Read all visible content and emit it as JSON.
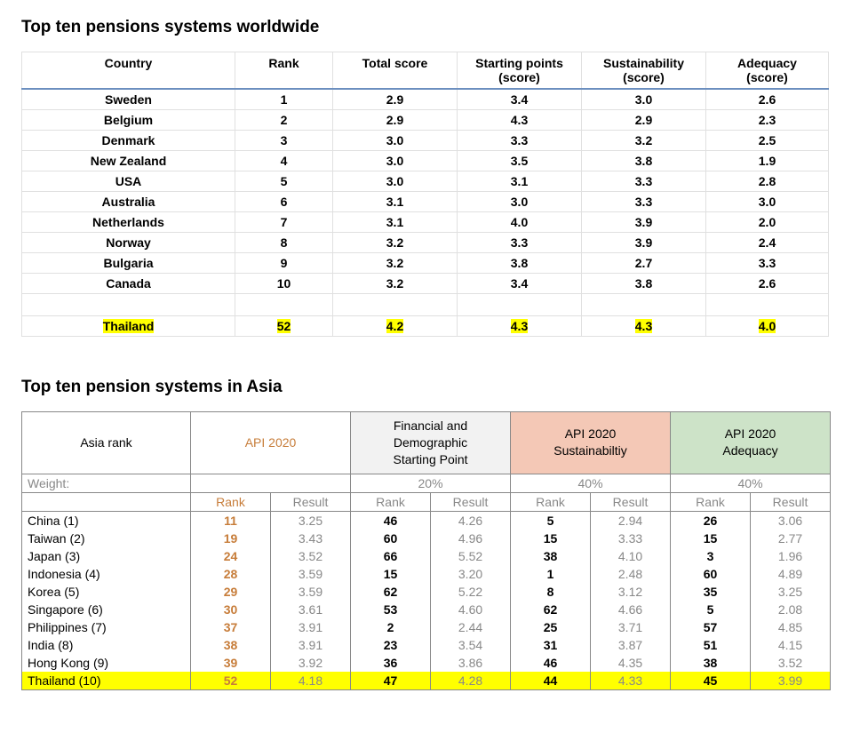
{
  "table1": {
    "title": "Top ten pensions systems worldwide",
    "columns": [
      {
        "l1": "Country",
        "l2": ""
      },
      {
        "l1": "Rank",
        "l2": ""
      },
      {
        "l1": "Total score",
        "l2": ""
      },
      {
        "l1": "Starting points",
        "l2": "(score)"
      },
      {
        "l1": "Sustainability",
        "l2": "(score)"
      },
      {
        "l1": "Adequacy",
        "l2": "(score)"
      }
    ],
    "rows": [
      {
        "country": "Sweden",
        "rank": "1",
        "total": "2.9",
        "sp": "3.4",
        "sus": "3.0",
        "adq": "2.6"
      },
      {
        "country": "Belgium",
        "rank": "2",
        "total": "2.9",
        "sp": "4.3",
        "sus": "2.9",
        "adq": "2.3"
      },
      {
        "country": "Denmark",
        "rank": "3",
        "total": "3.0",
        "sp": "3.3",
        "sus": "3.2",
        "adq": "2.5"
      },
      {
        "country": "New Zealand",
        "rank": "4",
        "total": "3.0",
        "sp": "3.5",
        "sus": "3.8",
        "adq": "1.9"
      },
      {
        "country": "USA",
        "rank": "5",
        "total": "3.0",
        "sp": "3.1",
        "sus": "3.3",
        "adq": "2.8"
      },
      {
        "country": "Australia",
        "rank": "6",
        "total": "3.1",
        "sp": "3.0",
        "sus": "3.3",
        "adq": "3.0"
      },
      {
        "country": "Netherlands",
        "rank": "7",
        "total": "3.1",
        "sp": "4.0",
        "sus": "3.9",
        "adq": "2.0"
      },
      {
        "country": "Norway",
        "rank": "8",
        "total": "3.2",
        "sp": "3.3",
        "sus": "3.9",
        "adq": "2.4"
      },
      {
        "country": "Bulgaria",
        "rank": "9",
        "total": "3.2",
        "sp": "3.8",
        "sus": "2.7",
        "adq": "3.3"
      },
      {
        "country": "Canada",
        "rank": "10",
        "total": "3.2",
        "sp": "3.4",
        "sus": "3.8",
        "adq": "2.6"
      }
    ],
    "highlight": {
      "country": "Thailand",
      "rank": "52",
      "total": "4.2",
      "sp": "4.3",
      "sus": "4.3",
      "adq": "4.0"
    }
  },
  "table2": {
    "title": "Top ten pension systems in Asia",
    "head": {
      "asia": "Asia rank",
      "api": "API 2020",
      "sp_l1": "Financial and",
      "sp_l2": "Demographic",
      "sp_l3": "Starting Point",
      "sus_l1": "API 2020",
      "sus_l2": "Sustainabiltiy",
      "adq_l1": "API 2020",
      "adq_l2": "Adequacy"
    },
    "weight_label": "Weight:",
    "weights": {
      "sp": "20%",
      "sus": "40%",
      "adq": "40%"
    },
    "sub": {
      "rank": "Rank",
      "result": "Result"
    },
    "rows": [
      {
        "country": "China (1)",
        "api_r": "11",
        "api_v": "3.25",
        "sp_r": "46",
        "sp_v": "4.26",
        "sus_r": "5",
        "sus_v": "2.94",
        "adq_r": "26",
        "adq_v": "3.06"
      },
      {
        "country": "Taiwan (2)",
        "api_r": "19",
        "api_v": "3.43",
        "sp_r": "60",
        "sp_v": "4.96",
        "sus_r": "15",
        "sus_v": "3.33",
        "adq_r": "15",
        "adq_v": "2.77"
      },
      {
        "country": "Japan (3)",
        "api_r": "24",
        "api_v": "3.52",
        "sp_r": "66",
        "sp_v": "5.52",
        "sus_r": "38",
        "sus_v": "4.10",
        "adq_r": "3",
        "adq_v": "1.96"
      },
      {
        "country": "Indonesia (4)",
        "api_r": "28",
        "api_v": "3.59",
        "sp_r": "15",
        "sp_v": "3.20",
        "sus_r": "1",
        "sus_v": "2.48",
        "adq_r": "60",
        "adq_v": "4.89"
      },
      {
        "country": "Korea (5)",
        "api_r": "29",
        "api_v": "3.59",
        "sp_r": "62",
        "sp_v": "5.22",
        "sus_r": "8",
        "sus_v": "3.12",
        "adq_r": "35",
        "adq_v": "3.25"
      },
      {
        "country": "Singapore (6)",
        "api_r": "30",
        "api_v": "3.61",
        "sp_r": "53",
        "sp_v": "4.60",
        "sus_r": "62",
        "sus_v": "4.66",
        "adq_r": "5",
        "adq_v": "2.08"
      },
      {
        "country": "Philippines (7)",
        "api_r": "37",
        "api_v": "3.91",
        "sp_r": "2",
        "sp_v": "2.44",
        "sus_r": "25",
        "sus_v": "3.71",
        "adq_r": "57",
        "adq_v": "4.85"
      },
      {
        "country": "India (8)",
        "api_r": "38",
        "api_v": "3.91",
        "sp_r": "23",
        "sp_v": "3.54",
        "sus_r": "31",
        "sus_v": "3.87",
        "adq_r": "51",
        "adq_v": "4.15"
      },
      {
        "country": "Hong Kong (9)",
        "api_r": "39",
        "api_v": "3.92",
        "sp_r": "36",
        "sp_v": "3.86",
        "sus_r": "46",
        "sus_v": "4.35",
        "adq_r": "38",
        "adq_v": "3.52"
      }
    ],
    "highlight": {
      "country": "Thailand (10)",
      "api_r": "52",
      "api_v": "4.18",
      "sp_r": "47",
      "sp_v": "4.28",
      "sus_r": "44",
      "sus_v": "4.33",
      "adq_r": "45",
      "adq_v": "3.99"
    }
  }
}
